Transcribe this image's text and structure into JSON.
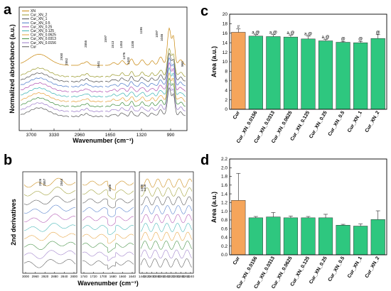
{
  "panels": {
    "a": "a",
    "b": "b",
    "c": "c",
    "d": "d"
  },
  "colors": {
    "cur_bar": "#f5a55b",
    "xn_bar": "#2ec77f",
    "bar_edge": "#333333"
  },
  "chart_data": [
    {
      "panel": "a",
      "type": "line",
      "xlabel": "Wavenumber (cm⁻¹)",
      "ylabel": "Normalized absorbance (a.u.)",
      "x_ticks": [
        "3700",
        "3330",
        "2960",
        "1650",
        "1320",
        "990"
      ],
      "legend_placement": "top-left",
      "series": [
        {
          "name": "XN",
          "color": "#c8860a"
        },
        {
          "name": "Cur_XN_2",
          "color": "#9a9a2c"
        },
        {
          "name": "Cur_XN_1",
          "color": "#4d4d4d"
        },
        {
          "name": "Cur_XN_0.5",
          "color": "#4a78c8"
        },
        {
          "name": "Cur_XN_0.25",
          "color": "#b050b0"
        },
        {
          "name": "Cur_XN_0.125",
          "color": "#3db3b3"
        },
        {
          "name": "Cur_XN_0.0625",
          "color": "#e6a23c"
        },
        {
          "name": "Cur_XN_0.0313",
          "color": "#3c8c3c"
        },
        {
          "name": "Cur_XN_0.0156",
          "color": "#9a7ac8"
        },
        {
          "name": "Cur",
          "color": "#555555"
        }
      ],
      "annotations": [
        "2930",
        "2852",
        "2855",
        "1597",
        "1513",
        "1453",
        "1476",
        "1443",
        "1338",
        "1196",
        "1097",
        "1046",
        "1641",
        "960"
      ]
    },
    {
      "panel": "b",
      "type": "line",
      "xlabel": "Wavenumber (cm⁻¹)",
      "ylabel": "2nd derivatives",
      "subplots": [
        {
          "x_ticks": [
            "3000",
            "2960",
            "2920",
            "2880",
            "2840",
            "2800"
          ],
          "annotations": [
            "2926",
            "2857",
            "2844"
          ]
        },
        {
          "x_ticks": [
            "1740",
            "1720",
            "1700",
            "1680",
            "1660",
            "1640"
          ],
          "annotations": [
            "1656"
          ]
        },
        {
          "x_ticks": [
            "1440",
            "1420",
            "1400",
            "1380",
            "1360",
            "1340",
            "1320",
            "1300",
            "1280",
            "1260",
            "1240"
          ],
          "annotations": [
            "1418",
            "1408"
          ]
        }
      ]
    },
    {
      "panel": "c",
      "type": "bar",
      "ylabel": "Area (a.u.)",
      "ylim": [
        0,
        20
      ],
      "y_ticks": [
        0,
        2,
        4,
        6,
        8,
        10,
        12,
        14,
        16,
        18,
        20
      ],
      "categories": [
        "Cur",
        "Cur_XN_0.0156",
        "Cur_XN_0.0313",
        "Cur_XN_0.0625",
        "Cur_XN_0.125",
        "Cur_XN_0.25",
        "Cur_XN_0.5",
        "Cur_XN_1",
        "Cur_XN_2"
      ],
      "values": [
        16.2,
        15.4,
        15.3,
        15.2,
        14.8,
        14.4,
        14.1,
        14.0,
        14.9
      ],
      "errors": [
        0.7,
        0.3,
        0.4,
        0.4,
        0.6,
        0.3,
        0.2,
        0.3,
        0.8
      ],
      "labels": [
        "#",
        "a,@",
        "a,@",
        "a,@",
        "a,@",
        "a,@",
        "@",
        "@",
        "@"
      ]
    },
    {
      "panel": "d",
      "type": "bar",
      "ylabel": "Area (a.u.)",
      "ylim": [
        0,
        2.2
      ],
      "y_ticks": [
        "0.0",
        "0.2",
        "0.4",
        "0.6",
        "0.8",
        "1.0",
        "1.2",
        "1.4",
        "1.6",
        "1.8",
        "2.0",
        "2.2"
      ],
      "categories": [
        "Cur",
        "Cur_XN_0.0156",
        "Cur_XN_0.0313",
        "Cur_XN_0.0625",
        "Cur_XN_0.125",
        "Cur_XN_0.25",
        "Cur_XN_0.5",
        "Cur_XN_1",
        "Cur_XN_2"
      ],
      "values": [
        1.25,
        0.85,
        0.87,
        0.85,
        0.85,
        0.85,
        0.68,
        0.66,
        0.81
      ],
      "errors": [
        0.62,
        0.03,
        0.1,
        0.04,
        0.03,
        0.08,
        0.02,
        0.05,
        0.2
      ]
    }
  ]
}
